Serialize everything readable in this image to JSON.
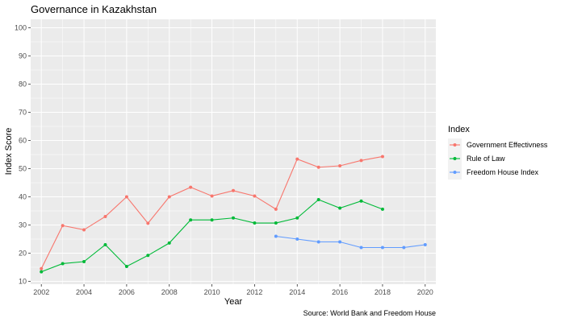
{
  "chart_data": {
    "type": "line",
    "title": "Governance in Kazakhstan",
    "xlabel": "Year",
    "ylabel": "Index Score",
    "caption": "Source: World Bank and Freedom House",
    "legend_title": "Index",
    "legend_position": "right",
    "grid": true,
    "xlim": [
      2001.5,
      2020.5
    ],
    "ylim": [
      9,
      103
    ],
    "x_ticks": [
      2002,
      2004,
      2006,
      2008,
      2010,
      2012,
      2014,
      2016,
      2018,
      2020
    ],
    "y_ticks": [
      10,
      20,
      30,
      40,
      50,
      60,
      70,
      80,
      90,
      100
    ],
    "series": [
      {
        "name": "Government Effectivness",
        "color": "#F8766D",
        "x": [
          2002,
          2003,
          2004,
          2005,
          2006,
          2007,
          2008,
          2009,
          2010,
          2011,
          2012,
          2013,
          2014,
          2015,
          2016,
          2017,
          2018
        ],
        "y": [
          14.5,
          29.8,
          28.3,
          33.0,
          40.0,
          30.6,
          40.0,
          43.4,
          40.3,
          42.2,
          40.3,
          35.6,
          53.4,
          50.5,
          51.0,
          52.9,
          54.3
        ]
      },
      {
        "name": "Rule of Law",
        "color": "#00BA38",
        "x": [
          2002,
          2003,
          2004,
          2005,
          2006,
          2007,
          2008,
          2009,
          2010,
          2011,
          2012,
          2013,
          2014,
          2015,
          2016,
          2017,
          2018
        ],
        "y": [
          13.4,
          16.3,
          17.0,
          23.0,
          15.3,
          19.2,
          23.6,
          31.8,
          31.8,
          32.5,
          30.7,
          30.7,
          32.5,
          39.0,
          36.0,
          38.5,
          35.6
        ]
      },
      {
        "name": "Freedom House Index",
        "color": "#619CFF",
        "x": [
          2013,
          2014,
          2015,
          2016,
          2017,
          2018,
          2019,
          2020
        ],
        "y": [
          26.0,
          25.0,
          24.0,
          24.0,
          22.0,
          22.0,
          22.0,
          23.0
        ]
      }
    ]
  }
}
